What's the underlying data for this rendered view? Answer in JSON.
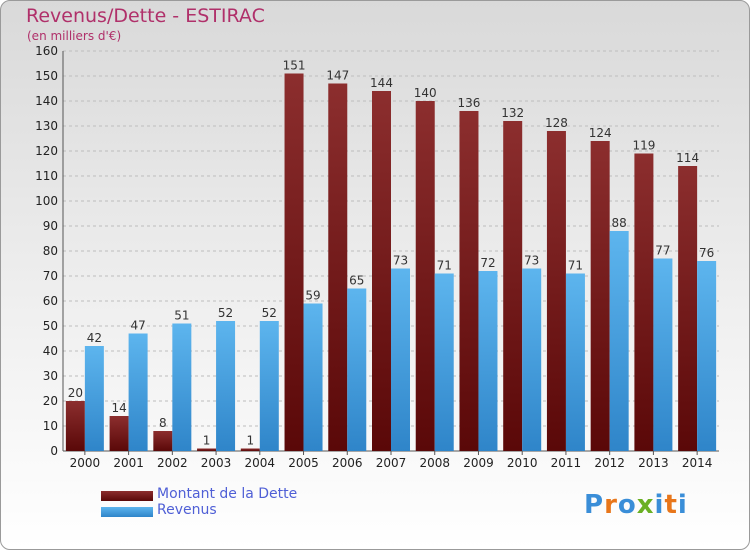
{
  "header": {
    "title": "Revenus/Dette - ESTIRAC",
    "subtitle": "(en milliers d'€)"
  },
  "legend": {
    "items": [
      {
        "label": "Montant de la Dette",
        "color": "#7a1a1a"
      },
      {
        "label": "Revenus",
        "color": "#3d9de0"
      }
    ]
  },
  "logo": {
    "text": "Proxiti",
    "letter_colors": [
      "#3a8ed8",
      "#e8761a",
      "#3a8ed8",
      "#6ab023",
      "#3a8ed8",
      "#e8761a",
      "#3a8ed8"
    ]
  },
  "colors": {
    "debt_top": "#8c2e2e",
    "debt_bottom": "#5a0808",
    "revenue_top": "#5db5ee",
    "revenue_bottom": "#2f85c9",
    "grid": "#bdbdbd",
    "axis_text": "#222222",
    "value_label": "#333333"
  },
  "chart_data": {
    "type": "bar",
    "title": "Revenus/Dette - ESTIRAC",
    "subtitle": "(en milliers d'€)",
    "xlabel": "",
    "ylabel": "",
    "categories": [
      "2000",
      "2001",
      "2002",
      "2003",
      "2004",
      "2005",
      "2006",
      "2007",
      "2008",
      "2009",
      "2010",
      "2011",
      "2012",
      "2013",
      "2014"
    ],
    "series": [
      {
        "name": "Montant de la Dette",
        "values": [
          20,
          14,
          8,
          1,
          1,
          151,
          147,
          144,
          140,
          136,
          132,
          128,
          124,
          119,
          114
        ]
      },
      {
        "name": "Revenus",
        "values": [
          42,
          47,
          51,
          52,
          52,
          59,
          65,
          73,
          71,
          72,
          73,
          71,
          88,
          77,
          76
        ]
      }
    ],
    "ylim": [
      0,
      160
    ],
    "yticks": [
      0,
      10,
      20,
      30,
      40,
      50,
      60,
      70,
      80,
      90,
      100,
      110,
      120,
      130,
      140,
      150,
      160
    ],
    "grid": "horizontal-dashed",
    "legend_position": "bottom-left"
  }
}
